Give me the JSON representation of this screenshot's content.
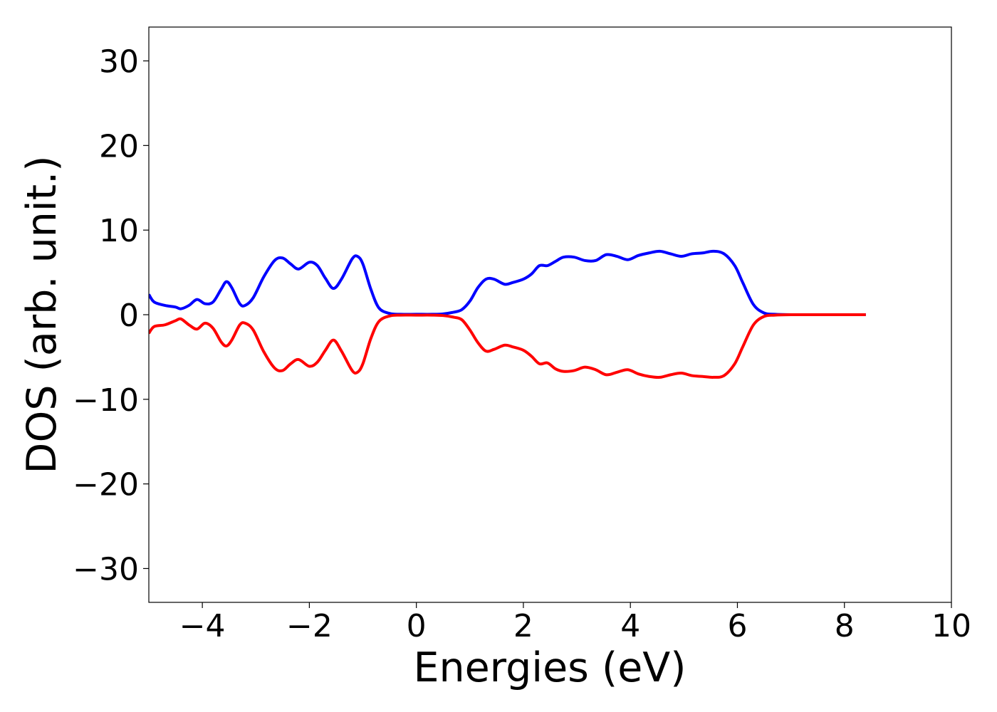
{
  "chart_data": {
    "type": "line",
    "title": "",
    "xlabel": "Energies (eV)",
    "ylabel": "DOS (arb. unit.)",
    "xlim": [
      -5,
      10
    ],
    "ylim": [
      -34,
      34
    ],
    "xticks": [
      -4,
      -2,
      0,
      2,
      4,
      6,
      8,
      10
    ],
    "xtick_labels": [
      "−4",
      "−2",
      "0",
      "2",
      "4",
      "6",
      "8",
      "10"
    ],
    "yticks": [
      30,
      20,
      10,
      0,
      -10,
      -20,
      -30
    ],
    "ytick_labels": [
      "30",
      "20",
      "10",
      "0",
      "−10",
      "−20",
      "−30"
    ],
    "grid": false,
    "legend": "none",
    "series": [
      {
        "color": "#0000ff",
        "x": [
          -5.0,
          -4.9,
          -4.7,
          -4.5,
          -4.4,
          -4.25,
          -4.1,
          -3.95,
          -3.8,
          -3.65,
          -3.55,
          -3.45,
          -3.3,
          -3.2,
          -3.05,
          -2.85,
          -2.65,
          -2.5,
          -2.35,
          -2.2,
          -2.0,
          -1.85,
          -1.7,
          -1.55,
          -1.4,
          -1.2,
          -1.1,
          -1.0,
          -0.85,
          -0.7,
          -0.5,
          -0.3,
          0.0,
          0.3,
          0.5,
          0.7,
          0.85,
          1.0,
          1.15,
          1.3,
          1.45,
          1.65,
          1.8,
          2.0,
          2.15,
          2.3,
          2.45,
          2.6,
          2.75,
          2.95,
          3.15,
          3.35,
          3.55,
          3.75,
          3.95,
          4.15,
          4.35,
          4.55,
          4.75,
          4.95,
          5.15,
          5.35,
          5.55,
          5.75,
          5.95,
          6.1,
          6.3,
          6.5,
          6.7,
          7.0,
          7.5,
          8.0,
          8.4
        ],
        "y": [
          2.4,
          1.5,
          1.1,
          0.9,
          0.7,
          1.1,
          1.8,
          1.3,
          1.5,
          3.0,
          3.9,
          3.2,
          1.3,
          1.1,
          2.0,
          4.5,
          6.4,
          6.7,
          6.0,
          5.4,
          6.2,
          5.8,
          4.3,
          3.1,
          4.2,
          6.6,
          6.9,
          6.0,
          3.0,
          0.8,
          0.15,
          0.05,
          0.05,
          0.05,
          0.1,
          0.3,
          0.6,
          1.6,
          3.2,
          4.2,
          4.2,
          3.6,
          3.8,
          4.2,
          4.8,
          5.8,
          5.8,
          6.3,
          6.8,
          6.8,
          6.4,
          6.4,
          7.1,
          6.9,
          6.5,
          7.0,
          7.3,
          7.5,
          7.2,
          6.9,
          7.2,
          7.3,
          7.5,
          7.2,
          5.8,
          3.8,
          1.2,
          0.2,
          0.05,
          0.0,
          0.0,
          0.0,
          0.0
        ]
      },
      {
        "color": "#ff0000",
        "x": [
          -5.0,
          -4.9,
          -4.7,
          -4.5,
          -4.4,
          -4.25,
          -4.1,
          -3.95,
          -3.8,
          -3.65,
          -3.55,
          -3.45,
          -3.3,
          -3.2,
          -3.05,
          -2.85,
          -2.65,
          -2.5,
          -2.35,
          -2.2,
          -2.0,
          -1.85,
          -1.7,
          -1.55,
          -1.4,
          -1.2,
          -1.1,
          -1.0,
          -0.85,
          -0.7,
          -0.5,
          -0.3,
          0.0,
          0.3,
          0.5,
          0.7,
          0.85,
          1.0,
          1.15,
          1.3,
          1.45,
          1.65,
          1.8,
          2.0,
          2.15,
          2.3,
          2.45,
          2.6,
          2.75,
          2.95,
          3.15,
          3.35,
          3.55,
          3.75,
          3.95,
          4.15,
          4.35,
          4.55,
          4.75,
          4.95,
          5.15,
          5.35,
          5.55,
          5.75,
          5.95,
          6.1,
          6.3,
          6.5,
          6.7,
          7.0,
          7.5,
          8.0,
          8.4
        ],
        "y": [
          -2.2,
          -1.4,
          -1.2,
          -0.7,
          -0.5,
          -1.2,
          -1.7,
          -1.0,
          -1.6,
          -3.2,
          -3.7,
          -3.0,
          -1.2,
          -1.0,
          -1.8,
          -4.4,
          -6.3,
          -6.6,
          -5.8,
          -5.3,
          -6.1,
          -5.6,
          -4.2,
          -3.0,
          -4.3,
          -6.6,
          -6.8,
          -5.8,
          -2.8,
          -0.8,
          -0.15,
          -0.05,
          -0.05,
          -0.05,
          -0.1,
          -0.3,
          -0.6,
          -1.8,
          -3.3,
          -4.3,
          -4.1,
          -3.6,
          -3.8,
          -4.2,
          -4.9,
          -5.8,
          -5.7,
          -6.4,
          -6.7,
          -6.6,
          -6.2,
          -6.5,
          -7.1,
          -6.8,
          -6.5,
          -7.0,
          -7.3,
          -7.4,
          -7.1,
          -6.9,
          -7.2,
          -7.3,
          -7.4,
          -7.2,
          -5.8,
          -3.8,
          -1.2,
          -0.2,
          -0.05,
          0.0,
          0.0,
          0.0,
          0.0
        ]
      }
    ]
  }
}
